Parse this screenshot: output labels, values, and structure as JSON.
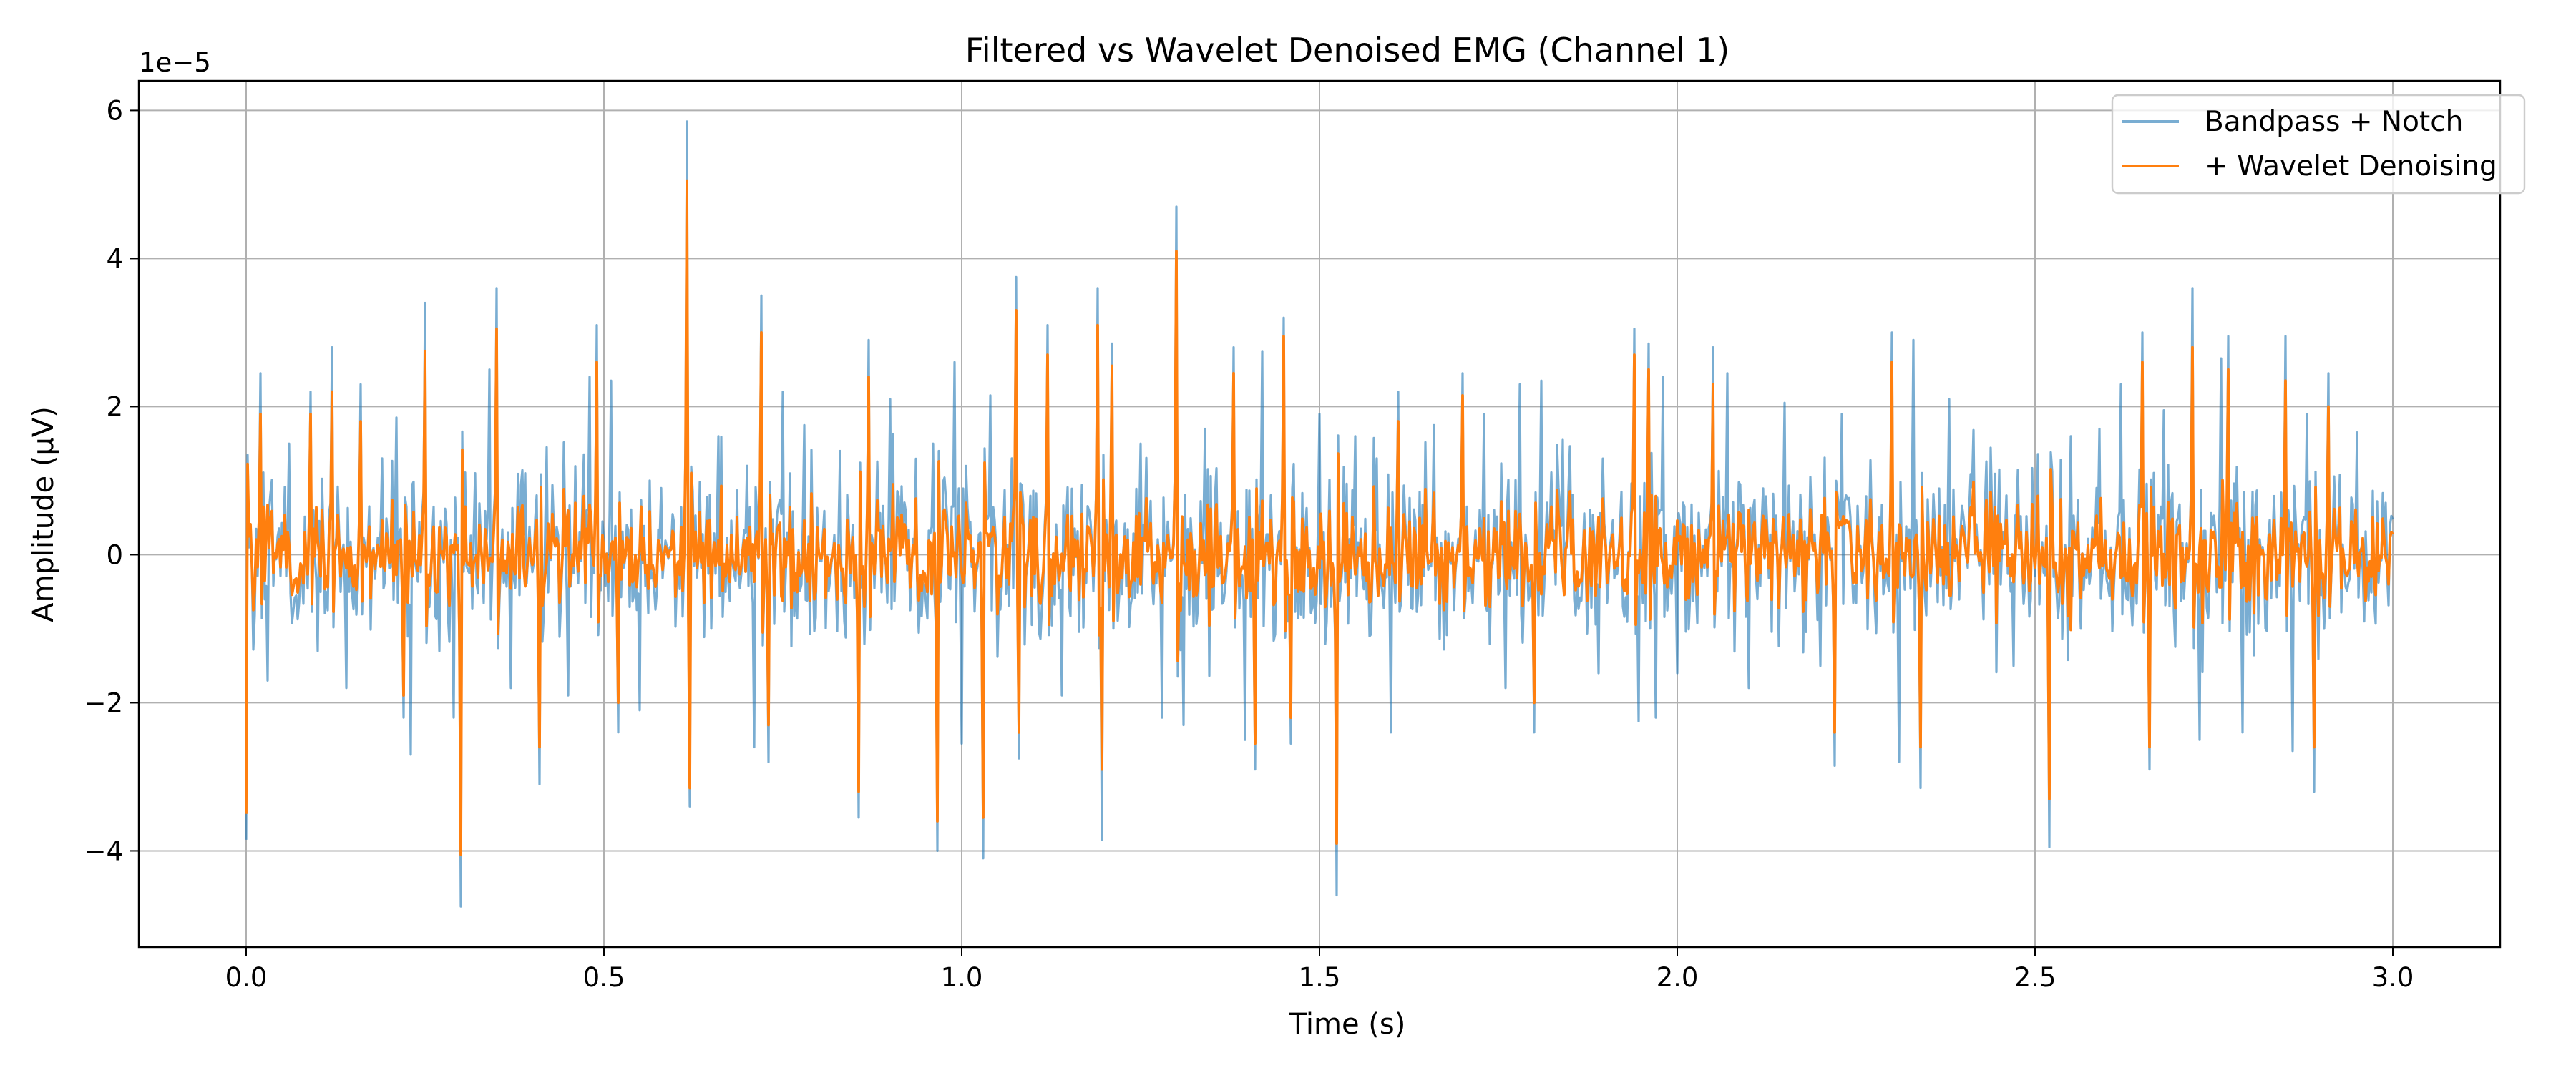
{
  "chart_data": {
    "type": "line",
    "title": "Filtered vs Wavelet Denoised EMG (Channel 1)",
    "xlabel": "Time (s)",
    "ylabel": "Amplitude (µV)",
    "y_offset_label": "1e−5",
    "xlim": [
      -0.15,
      3.15
    ],
    "ylim": [
      -5.3,
      6.4
    ],
    "grid": true,
    "legend_position": "upper right",
    "x_ticks": [
      0.0,
      0.5,
      1.0,
      1.5,
      2.0,
      2.5,
      3.0
    ],
    "x_tick_labels": [
      "0.0",
      "0.5",
      "1.0",
      "1.5",
      "2.0",
      "2.5",
      "3.0"
    ],
    "y_ticks": [
      -4,
      -2,
      0,
      2,
      4,
      6
    ],
    "y_tick_labels": [
      "−4",
      "−2",
      "0",
      "2",
      "4",
      "6"
    ],
    "x_range": [
      0,
      3.0
    ],
    "sample_interval": 0.002,
    "series": [
      {
        "name": "Bandpass + Notch",
        "color": "#1f77b4",
        "opacity": 0.6,
        "noise_std": 0.6,
        "spikes": [
          [
            0.0,
            -3.85
          ],
          [
            0.005,
            0.4
          ],
          [
            0.02,
            2.45
          ],
          [
            0.03,
            -1.7
          ],
          [
            0.06,
            1.5
          ],
          [
            0.09,
            2.2
          ],
          [
            0.1,
            -1.3
          ],
          [
            0.12,
            2.8
          ],
          [
            0.14,
            -1.8
          ],
          [
            0.16,
            2.3
          ],
          [
            0.19,
            1.3
          ],
          [
            0.21,
            1.85
          ],
          [
            0.22,
            -2.2
          ],
          [
            0.23,
            -2.7
          ],
          [
            0.25,
            3.4
          ],
          [
            0.27,
            -1.3
          ],
          [
            0.29,
            -2.2
          ],
          [
            0.3,
            -4.75
          ],
          [
            0.32,
            1.1
          ],
          [
            0.34,
            2.5
          ],
          [
            0.35,
            3.6
          ],
          [
            0.37,
            -1.8
          ],
          [
            0.39,
            1.1
          ],
          [
            0.41,
            -3.1
          ],
          [
            0.42,
            1.45
          ],
          [
            0.45,
            -1.9
          ],
          [
            0.48,
            2.4
          ],
          [
            0.49,
            3.1
          ],
          [
            0.51,
            2.35
          ],
          [
            0.52,
            -2.4
          ],
          [
            0.55,
            -2.1
          ],
          [
            0.58,
            0.9
          ],
          [
            0.615,
            5.85
          ],
          [
            0.62,
            -3.4
          ],
          [
            0.66,
            1.6
          ],
          [
            0.7,
            1.2
          ],
          [
            0.71,
            -2.6
          ],
          [
            0.72,
            3.5
          ],
          [
            0.73,
            -2.8
          ],
          [
            0.75,
            2.2
          ],
          [
            0.78,
            1.75
          ],
          [
            0.83,
            1.4
          ],
          [
            0.855,
            -3.55
          ],
          [
            0.87,
            2.9
          ],
          [
            0.9,
            2.1
          ],
          [
            0.96,
            1.5
          ],
          [
            0.965,
            -4.0
          ],
          [
            0.99,
            2.6
          ],
          [
            1.0,
            -2.55
          ],
          [
            1.03,
            -4.1
          ],
          [
            1.04,
            2.15
          ],
          [
            1.07,
            1.3
          ],
          [
            1.075,
            3.75
          ],
          [
            1.08,
            -2.75
          ],
          [
            1.12,
            3.1
          ],
          [
            1.14,
            -1.9
          ],
          [
            1.19,
            3.6
          ],
          [
            1.195,
            -3.85
          ],
          [
            1.21,
            2.85
          ],
          [
            1.25,
            1.5
          ],
          [
            1.28,
            -2.2
          ],
          [
            1.3,
            4.7
          ],
          [
            1.31,
            -2.3
          ],
          [
            1.34,
            1.7
          ],
          [
            1.38,
            2.8
          ],
          [
            1.395,
            -2.5
          ],
          [
            1.41,
            -2.9
          ],
          [
            1.42,
            2.75
          ],
          [
            1.45,
            3.2
          ],
          [
            1.46,
            -2.55
          ],
          [
            1.5,
            1.9
          ],
          [
            1.525,
            -4.6
          ],
          [
            1.55,
            1.6
          ],
          [
            1.58,
            1.3
          ],
          [
            1.6,
            -2.4
          ],
          [
            1.61,
            2.2
          ],
          [
            1.66,
            1.75
          ],
          [
            1.7,
            2.45
          ],
          [
            1.73,
            1.9
          ],
          [
            1.76,
            -1.8
          ],
          [
            1.78,
            2.3
          ],
          [
            1.8,
            -2.4
          ],
          [
            1.81,
            2.35
          ],
          [
            1.84,
            1.55
          ],
          [
            1.89,
            -1.6
          ],
          [
            1.94,
            3.05
          ],
          [
            1.945,
            -2.25
          ],
          [
            1.96,
            2.85
          ],
          [
            1.97,
            -2.2
          ],
          [
            1.98,
            2.4
          ],
          [
            2.0,
            -1.6
          ],
          [
            2.05,
            2.8
          ],
          [
            2.07,
            2.45
          ],
          [
            2.1,
            -1.8
          ],
          [
            2.15,
            2.05
          ],
          [
            2.2,
            -1.5
          ],
          [
            2.22,
            -2.85
          ],
          [
            2.23,
            1.9
          ],
          [
            2.3,
            3.0
          ],
          [
            2.31,
            -2.8
          ],
          [
            2.33,
            2.9
          ],
          [
            2.34,
            -3.15
          ],
          [
            2.38,
            2.1
          ],
          [
            2.45,
            1.15
          ],
          [
            2.47,
            -1.5
          ],
          [
            2.52,
            -3.95
          ],
          [
            2.55,
            1.6
          ],
          [
            2.59,
            1.7
          ],
          [
            2.62,
            2.3
          ],
          [
            2.65,
            3.0
          ],
          [
            2.66,
            -2.9
          ],
          [
            2.68,
            1.95
          ],
          [
            2.72,
            3.6
          ],
          [
            2.73,
            -2.5
          ],
          [
            2.76,
            2.65
          ],
          [
            2.77,
            2.95
          ],
          [
            2.79,
            -2.4
          ],
          [
            2.85,
            2.95
          ],
          [
            2.86,
            -2.65
          ],
          [
            2.88,
            1.9
          ],
          [
            2.89,
            -3.2
          ],
          [
            2.91,
            2.45
          ],
          [
            2.95,
            1.65
          ],
          [
            2.96,
            -0.9
          ],
          [
            2.99,
            0.7
          ]
        ]
      },
      {
        "name": "+ Wavelet Denoising",
        "color": "#ff7f0e",
        "opacity": 1.0,
        "noise_std": 0.35,
        "spikes": [
          [
            0.0,
            -3.5
          ],
          [
            0.02,
            1.9
          ],
          [
            0.09,
            1.9
          ],
          [
            0.12,
            2.2
          ],
          [
            0.16,
            1.8
          ],
          [
            0.22,
            -1.9
          ],
          [
            0.25,
            2.75
          ],
          [
            0.3,
            -4.05
          ],
          [
            0.35,
            3.05
          ],
          [
            0.41,
            -2.6
          ],
          [
            0.49,
            2.6
          ],
          [
            0.52,
            -2.0
          ],
          [
            0.615,
            5.05
          ],
          [
            0.62,
            -3.15
          ],
          [
            0.72,
            3.0
          ],
          [
            0.73,
            -2.3
          ],
          [
            0.855,
            -3.2
          ],
          [
            0.87,
            2.4
          ],
          [
            0.965,
            -3.6
          ],
          [
            1.03,
            -3.55
          ],
          [
            1.075,
            3.3
          ],
          [
            1.08,
            -2.4
          ],
          [
            1.12,
            2.7
          ],
          [
            1.19,
            3.1
          ],
          [
            1.195,
            -2.9
          ],
          [
            1.21,
            2.55
          ],
          [
            1.3,
            4.1
          ],
          [
            1.38,
            2.45
          ],
          [
            1.41,
            -2.55
          ],
          [
            1.45,
            2.95
          ],
          [
            1.46,
            -2.2
          ],
          [
            1.525,
            -3.9
          ],
          [
            1.61,
            1.8
          ],
          [
            1.7,
            2.15
          ],
          [
            1.8,
            -2.0
          ],
          [
            1.94,
            2.7
          ],
          [
            1.96,
            2.5
          ],
          [
            2.05,
            2.3
          ],
          [
            2.22,
            -2.4
          ],
          [
            2.3,
            2.6
          ],
          [
            2.34,
            -2.6
          ],
          [
            2.52,
            -3.3
          ],
          [
            2.65,
            2.6
          ],
          [
            2.66,
            -2.6
          ],
          [
            2.72,
            2.8
          ],
          [
            2.77,
            2.5
          ],
          [
            2.85,
            2.35
          ],
          [
            2.89,
            -2.6
          ],
          [
            2.91,
            2.0
          ]
        ]
      }
    ]
  }
}
